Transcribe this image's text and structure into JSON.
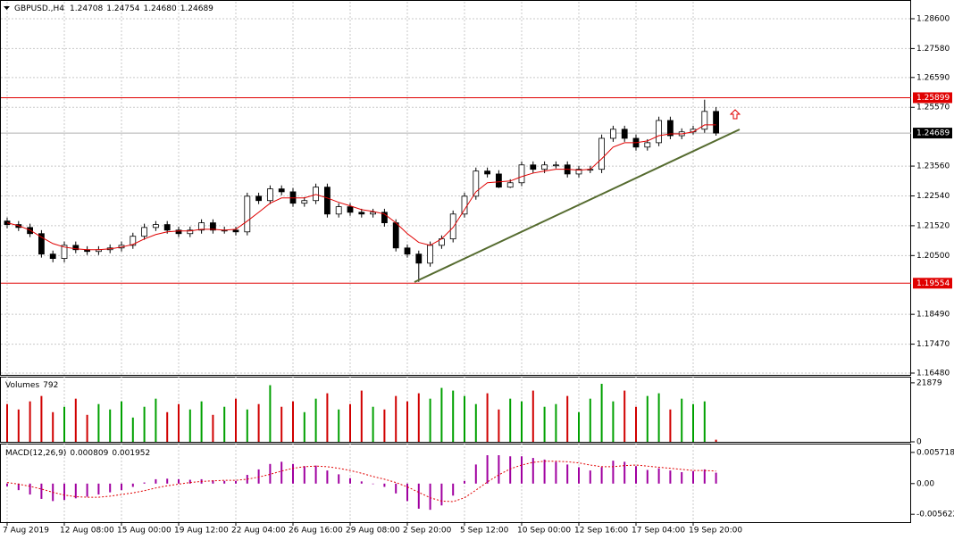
{
  "header": {
    "symbol": "GBPUSD.,H4",
    "ohlc": [
      "1.24708",
      "1.24754",
      "1.24680",
      "1.24689"
    ]
  },
  "chart_data": [
    {
      "type": "candlestick",
      "categories": [
        "7 Aug 2019",
        null,
        null,
        null,
        null,
        "12 Aug 08:00",
        null,
        null,
        null,
        null,
        "15 Aug 00:00",
        null,
        null,
        null,
        null,
        "19 Aug 12:00",
        null,
        null,
        null,
        null,
        "22 Aug 04:00",
        null,
        null,
        null,
        null,
        "26 Aug 16:00",
        null,
        null,
        null,
        null,
        "29 Aug 08:00",
        null,
        null,
        null,
        null,
        "2 Sep 20:00",
        null,
        null,
        null,
        null,
        "5 Sep 12:00",
        null,
        null,
        null,
        null,
        "10 Sep 00:00",
        null,
        null,
        null,
        null,
        "12 Sep 16:00",
        null,
        null,
        null,
        null,
        "17 Sep 04:00",
        null,
        null,
        null,
        null,
        "19 Sep 20:00",
        null,
        null
      ],
      "open": [
        1.2168,
        1.2156,
        1.2146,
        1.2125,
        1.2055,
        1.204,
        1.2085,
        1.207,
        1.2064,
        1.207,
        1.2076,
        1.2085,
        1.2116,
        1.2146,
        1.2156,
        1.2137,
        1.2125,
        1.2137,
        1.2162,
        1.2137,
        1.2137,
        1.2131,
        1.2253,
        1.2238,
        1.2278,
        1.2268,
        1.2229,
        1.2238,
        1.2284,
        1.2192,
        1.2217,
        1.2198,
        1.2192,
        1.2198,
        1.2162,
        1.2076,
        1.2055,
        1.2024,
        1.2085,
        1.2107,
        1.2192,
        1.2253,
        1.2339,
        1.2329,
        1.2284,
        1.2299,
        1.236,
        1.2345,
        1.236,
        1.236,
        1.2329,
        1.2345,
        1.2345,
        1.2451,
        1.2482,
        1.2451,
        1.2421,
        1.2436,
        1.2512,
        1.246,
        1.2473,
        1.2482,
        1.2543
      ],
      "high": [
        1.218,
        1.2168,
        1.2159,
        1.2137,
        1.2067,
        1.2098,
        1.2098,
        1.2082,
        1.2082,
        1.2088,
        1.2098,
        1.2128,
        1.2159,
        1.2168,
        1.2168,
        1.2149,
        1.2149,
        1.2174,
        1.2174,
        1.2149,
        1.2149,
        1.2265,
        1.2265,
        1.229,
        1.229,
        1.2281,
        1.225,
        1.2296,
        1.2296,
        1.2229,
        1.2229,
        1.221,
        1.221,
        1.221,
        1.2174,
        1.2088,
        1.2067,
        1.2098,
        1.2119,
        1.2204,
        1.2265,
        1.2351,
        1.2351,
        1.2342,
        1.2311,
        1.2372,
        1.2372,
        1.2372,
        1.2372,
        1.2372,
        1.2357,
        1.2357,
        1.2464,
        1.2494,
        1.2494,
        1.2464,
        1.2448,
        1.2525,
        1.2525,
        1.2485,
        1.2494,
        1.2583,
        1.2558
      ],
      "low": [
        1.2143,
        1.2134,
        1.2113,
        1.2043,
        1.2027,
        1.2027,
        1.2058,
        1.2052,
        1.2052,
        1.2058,
        1.2064,
        1.2073,
        1.2104,
        1.2134,
        1.2125,
        1.2113,
        1.2113,
        1.2125,
        1.2125,
        1.2125,
        1.2119,
        1.2119,
        1.2226,
        1.2226,
        1.2256,
        1.2217,
        1.2217,
        1.2226,
        1.218,
        1.218,
        1.2186,
        1.218,
        1.218,
        1.2149,
        1.2064,
        1.2043,
        1.196,
        1.2012,
        1.2073,
        1.2095,
        1.218,
        1.2241,
        1.2317,
        1.2281,
        1.2281,
        1.2287,
        1.2332,
        1.2332,
        1.2348,
        1.2317,
        1.2317,
        1.2332,
        1.2332,
        1.2439,
        1.2439,
        1.2409,
        1.2409,
        1.2424,
        1.2448,
        1.2448,
        1.2464,
        1.247,
        1.246
      ],
      "close": [
        1.2156,
        1.2146,
        1.2125,
        1.2055,
        1.204,
        1.2085,
        1.207,
        1.2064,
        1.207,
        1.2076,
        1.2085,
        1.2116,
        1.2146,
        1.2156,
        1.2137,
        1.2125,
        1.2137,
        1.2162,
        1.2137,
        1.2137,
        1.2131,
        1.2253,
        1.2238,
        1.2278,
        1.2268,
        1.2229,
        1.2238,
        1.2284,
        1.2192,
        1.2217,
        1.2198,
        1.2192,
        1.2198,
        1.2162,
        1.2076,
        1.2055,
        1.2024,
        1.2085,
        1.2107,
        1.2192,
        1.2253,
        1.2339,
        1.2329,
        1.2284,
        1.2299,
        1.236,
        1.2345,
        1.236,
        1.236,
        1.2329,
        1.2345,
        1.2345,
        1.2451,
        1.2482,
        1.2451,
        1.2421,
        1.2436,
        1.2512,
        1.246,
        1.2473,
        1.2482,
        1.2543,
        1.24689
      ],
      "ma": {
        "color": "#e00000",
        "values": [
          1.2162,
          1.2152,
          1.2137,
          1.2113,
          1.2091,
          1.2079,
          1.2073,
          1.207,
          1.207,
          1.2073,
          1.2079,
          1.2088,
          1.2107,
          1.2122,
          1.2131,
          1.2134,
          1.2134,
          1.214,
          1.214,
          1.2137,
          1.214,
          1.2168,
          1.2198,
          1.2229,
          1.2247,
          1.2247,
          1.2247,
          1.2259,
          1.2247,
          1.2232,
          1.222,
          1.2207,
          1.2201,
          1.2192,
          1.2162,
          1.2125,
          1.2095,
          1.2085,
          1.2107,
          1.2146,
          1.2207,
          1.2268,
          1.2299,
          1.2302,
          1.2305,
          1.232,
          1.2332,
          1.2339,
          1.2345,
          1.2345,
          1.2342,
          1.2345,
          1.2381,
          1.2421,
          1.2436,
          1.2436,
          1.2442,
          1.246,
          1.2466,
          1.2466,
          1.2473,
          1.2497,
          1.2497
        ]
      },
      "ylim": [
        1.16419,
        1.29088
      ],
      "yticks": [
        {
          "value": 1.286,
          "label": "1.28600"
        },
        {
          "value": 1.2758,
          "label": "1.27580"
        },
        {
          "value": 1.2659,
          "label": "1.26590"
        },
        {
          "value": 1.2557,
          "label": "1.25570"
        },
        {
          "value": 1.2356,
          "label": "1.23560"
        },
        {
          "value": 1.2254,
          "label": "1.22540"
        },
        {
          "value": 1.2152,
          "label": "1.21520"
        },
        {
          "value": 1.205,
          "label": "1.20500"
        },
        {
          "value": 1.1849,
          "label": "1.18490"
        },
        {
          "value": 1.1747,
          "label": "1.17470"
        },
        {
          "value": 1.1648,
          "label": "1.16480"
        }
      ],
      "levels": [
        {
          "value": 1.25899,
          "color": "#e00000"
        },
        {
          "value": 1.19554,
          "color": "#e00000"
        }
      ],
      "current": {
        "value": 1.24689,
        "color": "#000000"
      },
      "grid": true
    },
    {
      "type": "volume",
      "title": "Volumes",
      "current": "792",
      "up_color": "#00a000",
      "down_color": "#d00000",
      "values": [
        14000,
        12000,
        15000,
        17000,
        11000,
        13000,
        16000,
        10000,
        14000,
        12000,
        15000,
        9000,
        13000,
        16000,
        11000,
        14000,
        12000,
        15000,
        10000,
        13000,
        16000,
        12000,
        14000,
        21000,
        13000,
        15000,
        11000,
        16000,
        18000,
        12000,
        14000,
        19000,
        13000,
        12000,
        17000,
        15000,
        18000,
        16000,
        20000,
        19000,
        17000,
        14000,
        18000,
        12000,
        16000,
        15000,
        19000,
        13000,
        14000,
        17000,
        11000,
        16000,
        21500,
        15000,
        19000,
        13000,
        17000,
        18000,
        12000,
        16000,
        14000,
        15000,
        792
      ],
      "ylim": [
        0,
        23500
      ],
      "yticks": [
        21879,
        0
      ]
    },
    {
      "type": "macd",
      "title": "MACD(12,26,9)",
      "readout": [
        "0.000809",
        "0.001952"
      ],
      "series": [
        {
          "color": "#a000a0",
          "values": [
            -0.0005,
            -0.0012,
            -0.002,
            -0.0028,
            -0.0032,
            -0.003,
            -0.0027,
            -0.0024,
            -0.002,
            -0.0016,
            -0.0012,
            -0.0006,
            0.0002,
            0.0008,
            0.0009,
            0.0008,
            0.0007,
            0.0008,
            0.0006,
            0.0005,
            0.0005,
            0.0016,
            0.0026,
            0.0036,
            0.004,
            0.0036,
            0.0032,
            0.0033,
            0.0024,
            0.0017,
            0.001,
            0.0004,
            -0.0001,
            -0.0006,
            -0.0018,
            -0.0032,
            -0.0046,
            -0.0048,
            -0.004,
            -0.0022,
            0.0005,
            0.0035,
            0.0052,
            0.0052,
            0.005,
            0.005,
            0.0047,
            0.0044,
            0.004,
            0.0035,
            0.003,
            0.0024,
            0.003,
            0.0042,
            0.004,
            0.0032,
            0.0025,
            0.0028,
            0.0024,
            0.0021,
            0.0023,
            0.0026,
            0.002
          ]
        },
        {
          "color": "#e00000",
          "values": [
            0.0002,
            -0.0001,
            -0.0005,
            -0.001,
            -0.0016,
            -0.0021,
            -0.0024,
            -0.0025,
            -0.0025,
            -0.0023,
            -0.002,
            -0.0017,
            -0.0013,
            -0.0008,
            -0.0004,
            -0.0001,
            0.0002,
            0.0004,
            0.0005,
            0.0006,
            0.0006,
            0.0008,
            0.0012,
            0.0017,
            0.0023,
            0.0028,
            0.0031,
            0.0032,
            0.0031,
            0.0028,
            0.0024,
            0.0019,
            0.0013,
            0.0008,
            0.0002,
            -0.0006,
            -0.0016,
            -0.0026,
            -0.0032,
            -0.0033,
            -0.0026,
            -0.0012,
            0.0003,
            0.0016,
            0.0027,
            0.0034,
            0.0039,
            0.0041,
            0.0041,
            0.004,
            0.0038,
            0.0034,
            0.0031,
            0.0031,
            0.0033,
            0.0034,
            0.0032,
            0.003,
            0.0028,
            0.0026,
            0.0024,
            0.0024,
            0.0023
          ]
        }
      ],
      "ylim": [
        -0.0069,
        0.007
      ],
      "yticks": [
        0.005718,
        {
          "value": 0,
          "label": "0.00"
        },
        -0.005622
      ]
    }
  ]
}
